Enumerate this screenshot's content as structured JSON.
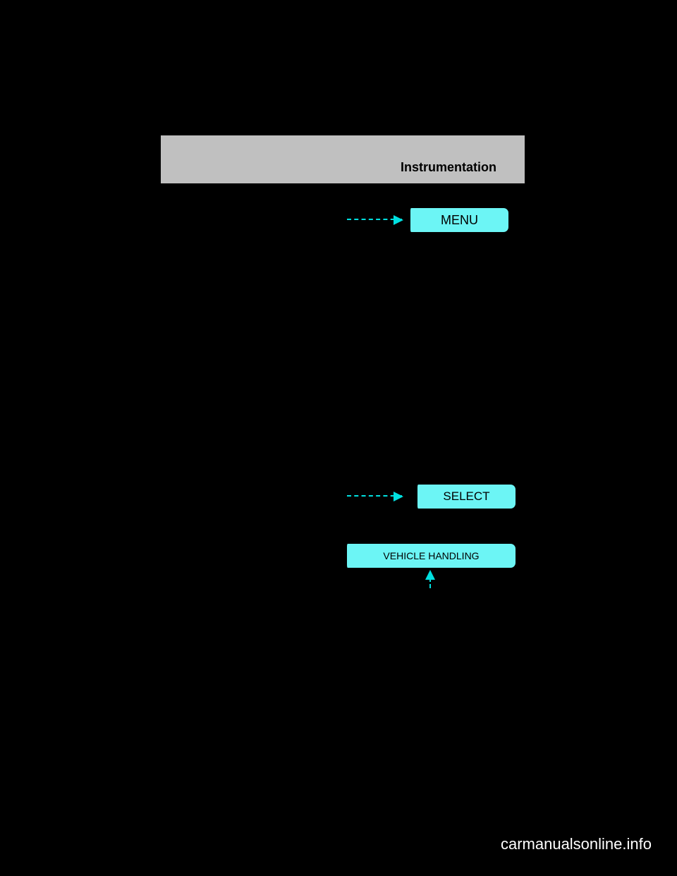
{
  "header": {
    "title": "Instrumentation"
  },
  "buttons": {
    "menu": {
      "label": "MENU",
      "bg_color": "#6cf5f5",
      "border_color": "#000000"
    },
    "select": {
      "label": "SELECT",
      "bg_color": "#6cf5f5",
      "border_color": "#000000"
    },
    "vehicle_handling": {
      "label": "VEHICLE HANDLING",
      "bg_color": "#6cf5f5",
      "border_color": "#000000"
    }
  },
  "arrows": {
    "color": "#00e0e0"
  },
  "watermark": "carmanualsonline.info",
  "colors": {
    "background": "#000000",
    "header_bg": "#c0c0c0",
    "header_text": "#000000",
    "button_text": "#000000"
  }
}
